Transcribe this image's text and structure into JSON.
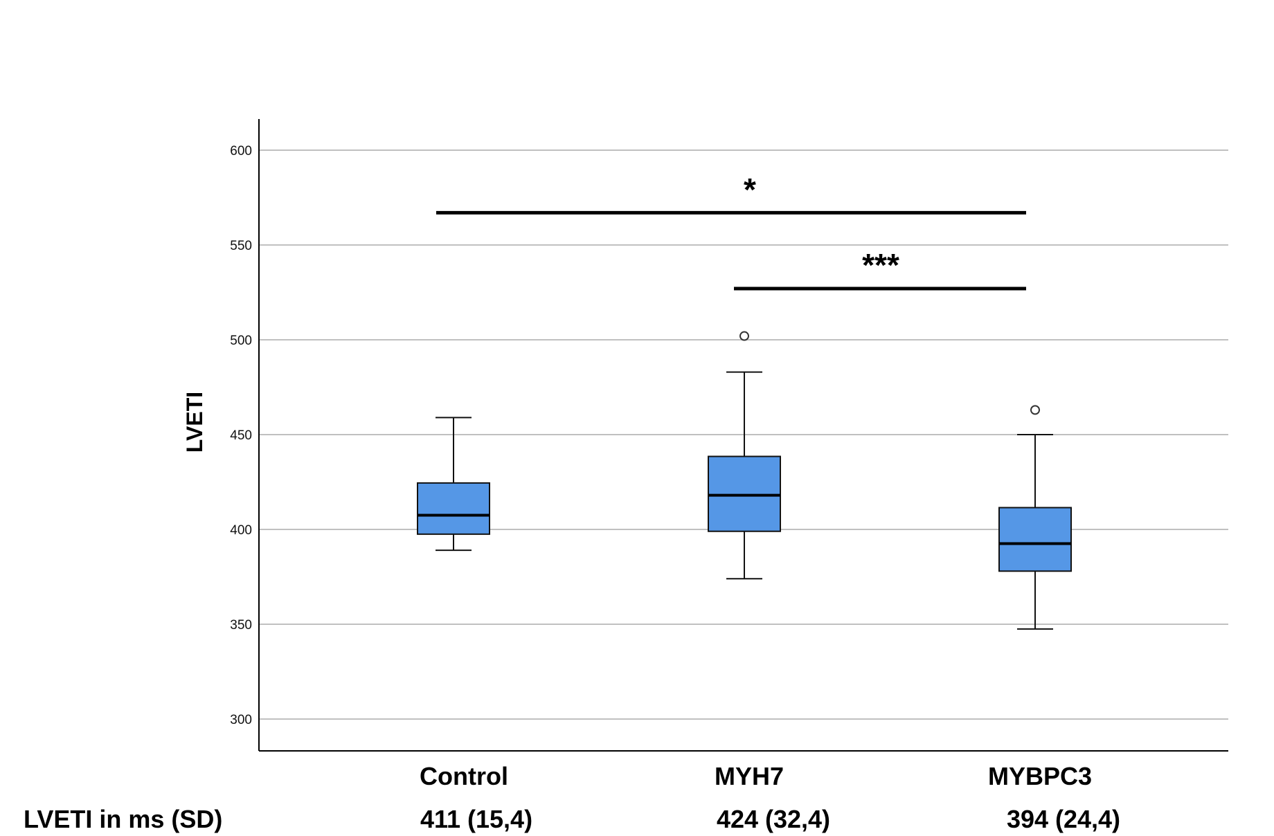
{
  "chart_data": {
    "type": "boxplot",
    "ylabel": "LVETI",
    "xlabel": "",
    "ylim": [
      284,
      620
    ],
    "yticks": [
      300,
      350,
      400,
      450,
      500,
      550,
      600
    ],
    "grid": true,
    "categories": [
      "Control",
      "MYH7",
      "MYBPC3"
    ],
    "boxes": [
      {
        "name": "Control",
        "whisker_low": 389,
        "q1": 397.5,
        "median": 407.5,
        "q3": 424.5,
        "whisker_high": 459,
        "outliers": []
      },
      {
        "name": "MYH7",
        "whisker_low": 374,
        "q1": 399,
        "median": 418,
        "q3": 438.5,
        "whisker_high": 483,
        "outliers": [
          502
        ]
      },
      {
        "name": "MYBPC3",
        "whisker_low": 347.5,
        "q1": 378,
        "median": 392.5,
        "q3": 411.5,
        "whisker_high": 450,
        "outliers": [
          463
        ]
      }
    ],
    "box_color": "#5597e6",
    "significance": [
      {
        "from": "Control",
        "to": "MYBPC3",
        "label": "*",
        "y": 567
      },
      {
        "from": "MYH7",
        "to": "MYBPC3",
        "label": "***",
        "y": 527
      }
    ],
    "summary": {
      "label": "LVETI in ms (SD)",
      "values": [
        "411 (15,4)",
        "424 (32,4)",
        "394 (24,4)"
      ]
    }
  }
}
